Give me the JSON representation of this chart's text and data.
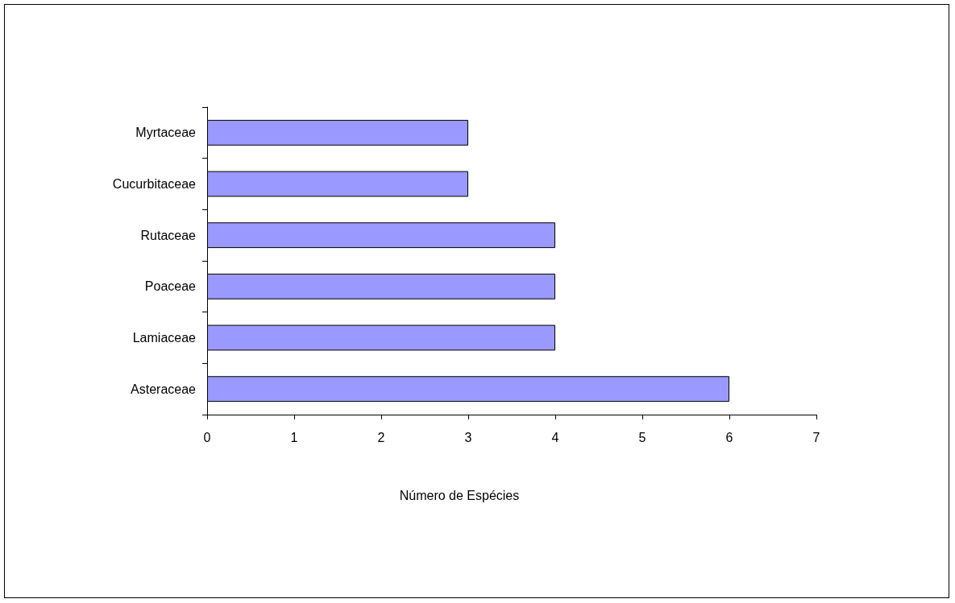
{
  "chart_data": {
    "type": "bar",
    "orientation": "horizontal",
    "xlabel": "Número de Espécies",
    "categories": [
      "Myrtaceae",
      "Cucurbitaceae",
      "Rutaceae",
      "Poaceae",
      "Lamiaceae",
      "Asteraceae"
    ],
    "values": [
      3,
      3,
      4,
      4,
      4,
      6
    ],
    "color": "#9999ff",
    "xlim": [
      0,
      7
    ],
    "xticks": [
      0,
      1,
      2,
      3,
      4,
      5,
      6,
      7
    ],
    "grid": false
  }
}
